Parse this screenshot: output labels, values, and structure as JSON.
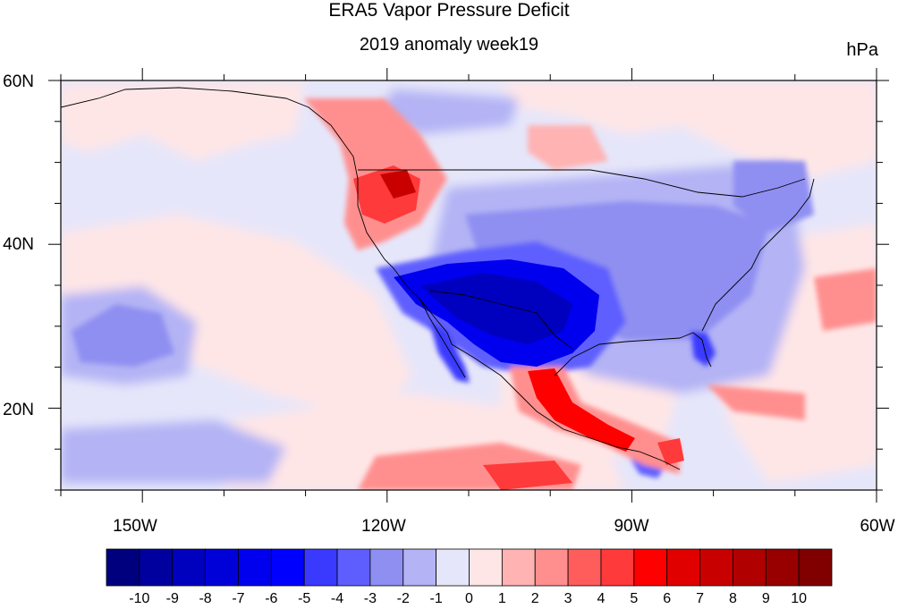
{
  "title": "ERA5 Vapor Pressure Deficit",
  "subtitle": "2019 anomaly week19",
  "units": "hPa",
  "map": {
    "lon_range": [
      -160,
      -60
    ],
    "lat_range": [
      10,
      60
    ],
    "lon_ticks": [
      "150W",
      "120W",
      "90W",
      "60W"
    ],
    "lat_ticks": [
      "60N",
      "40N",
      "20N"
    ],
    "background_color": "#e6e6fa"
  },
  "colorbar": {
    "colors": [
      "#00007f",
      "#00009f",
      "#0000bf",
      "#0000d8",
      "#0000ee",
      "#0000ff",
      "#3a3aff",
      "#5e5eff",
      "#8f8ff2",
      "#b3b3f5",
      "#e6e6fa",
      "#ffe6e6",
      "#ffb3b3",
      "#ff8f8f",
      "#ff5c5c",
      "#ff3a3a",
      "#ff0000",
      "#e00000",
      "#c80000",
      "#b00000",
      "#980000",
      "#800000"
    ],
    "labels": [
      "-10",
      "-9",
      "-8",
      "-7",
      "-6",
      "-5",
      "-4",
      "-3",
      "-2",
      "-1",
      "0",
      "1",
      "2",
      "3",
      "4",
      "5",
      "6",
      "7",
      "8",
      "9",
      "10"
    ]
  }
}
